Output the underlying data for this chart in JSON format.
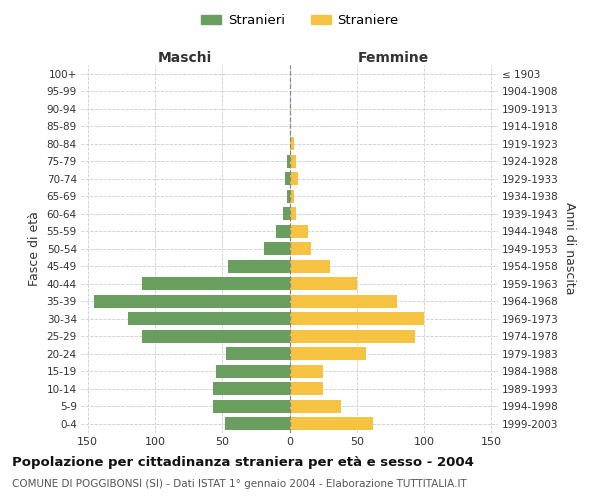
{
  "age_groups": [
    "100+",
    "95-99",
    "90-94",
    "85-89",
    "80-84",
    "75-79",
    "70-74",
    "65-69",
    "60-64",
    "55-59",
    "50-54",
    "45-49",
    "40-44",
    "35-39",
    "30-34",
    "25-29",
    "20-24",
    "15-19",
    "10-14",
    "5-9",
    "0-4"
  ],
  "birth_years": [
    "≤ 1903",
    "1904-1908",
    "1909-1913",
    "1914-1918",
    "1919-1923",
    "1924-1928",
    "1929-1933",
    "1934-1938",
    "1939-1943",
    "1944-1948",
    "1949-1953",
    "1954-1958",
    "1959-1963",
    "1964-1968",
    "1969-1973",
    "1974-1978",
    "1979-1983",
    "1984-1988",
    "1989-1993",
    "1994-1998",
    "1999-2003"
  ],
  "maschi": [
    0,
    0,
    0,
    0,
    0,
    2,
    3,
    2,
    5,
    10,
    19,
    46,
    110,
    145,
    120,
    110,
    47,
    55,
    57,
    57,
    48
  ],
  "femmine": [
    0,
    0,
    1,
    0,
    3,
    5,
    6,
    3,
    5,
    14,
    16,
    30,
    50,
    80,
    100,
    93,
    57,
    25,
    25,
    38,
    62
  ],
  "maschi_color": "#6a9e5f",
  "femmine_color": "#f5c242",
  "grid_color": "#cccccc",
  "bg_color": "#ffffff",
  "zero_line_color": "#888888",
  "title": "Popolazione per cittadinanza straniera per età e sesso - 2004",
  "subtitle": "COMUNE DI POGGIBONSI (SI) - Dati ISTAT 1° gennaio 2004 - Elaborazione TUTTITALIA.IT",
  "ylabel_left": "Fasce di età",
  "ylabel_right": "Anni di nascita",
  "label_maschi": "Maschi",
  "label_femmine": "Femmine",
  "legend_maschi": "Stranieri",
  "legend_femmine": "Straniere",
  "xlim": 155
}
